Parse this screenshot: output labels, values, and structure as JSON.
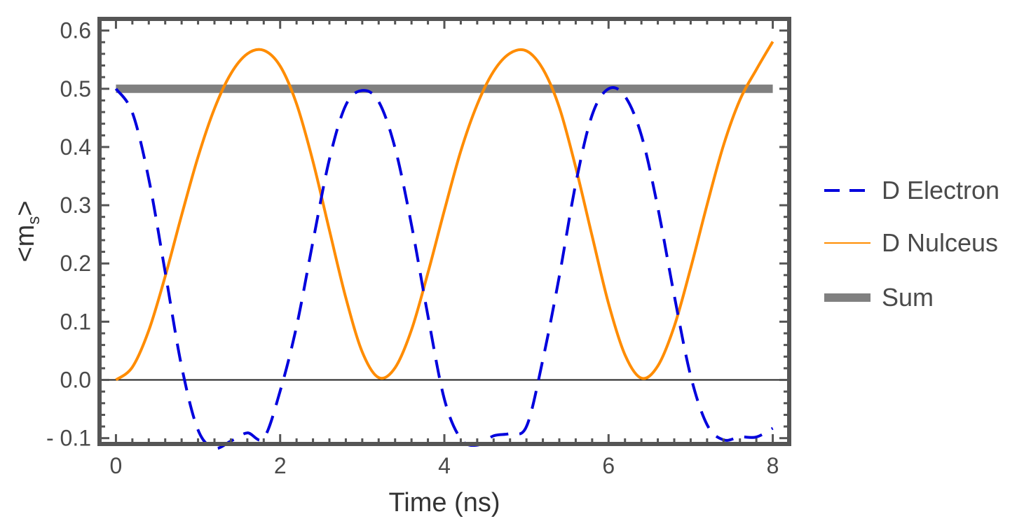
{
  "chart_data": {
    "type": "line",
    "xlabel": "Time (ns)",
    "ylabel": {
      "prefix": "<m",
      "sub": "s",
      "suffix": ">"
    },
    "xlim": [
      -0.2,
      8.2
    ],
    "ylim": [
      -0.11,
      0.62
    ],
    "x_ticks": [
      {
        "value": 0,
        "label": "0"
      },
      {
        "value": 2,
        "label": "2"
      },
      {
        "value": 4,
        "label": "4"
      },
      {
        "value": 6,
        "label": "6"
      },
      {
        "value": 8,
        "label": "8"
      }
    ],
    "y_ticks": [
      {
        "value": -0.1,
        "label": "- 0.1"
      },
      {
        "value": 0.0,
        "label": "0.0"
      },
      {
        "value": 0.1,
        "label": "0.1"
      },
      {
        "value": 0.2,
        "label": "0.2"
      },
      {
        "value": 0.3,
        "label": "0.3"
      },
      {
        "value": 0.4,
        "label": "0.4"
      },
      {
        "value": 0.5,
        "label": "0.5"
      },
      {
        "value": 0.6,
        "label": "0.6"
      }
    ],
    "grid": false,
    "legend_position": "right",
    "series": [
      {
        "name": "D Electron",
        "color": "#0000dd",
        "style": "dashed",
        "x": [
          0.0,
          0.2,
          0.4,
          0.6,
          0.8,
          1.0,
          1.2,
          1.4,
          1.6,
          1.8,
          2.0,
          2.2,
          2.4,
          2.6,
          2.8,
          3.0,
          3.2,
          3.4,
          3.6,
          3.8,
          4.0,
          4.2,
          4.4,
          4.6,
          4.8,
          5.0,
          5.2,
          5.4,
          5.6,
          5.8,
          6.0,
          6.2,
          6.4,
          6.6,
          6.8,
          7.0,
          7.2,
          7.4,
          7.6,
          7.8,
          8.0
        ],
        "y": [
          0.5,
          0.459,
          0.345,
          0.185,
          0.023,
          -0.086,
          -0.117,
          -0.105,
          -0.091,
          -0.1,
          -0.019,
          0.092,
          0.238,
          0.379,
          0.472,
          0.497,
          0.478,
          0.398,
          0.266,
          0.11,
          -0.033,
          -0.101,
          -0.112,
          -0.096,
          -0.092,
          -0.08,
          0.035,
          0.178,
          0.337,
          0.455,
          0.5,
          0.487,
          0.42,
          0.296,
          0.145,
          0.007,
          -0.077,
          -0.103,
          -0.098,
          -0.098,
          -0.083
        ]
      },
      {
        "name": "D Nulceus",
        "color": "#ff8c00",
        "style": "solid",
        "x": [
          0.0,
          0.2,
          0.4,
          0.6,
          0.8,
          1.0,
          1.2,
          1.4,
          1.6,
          1.8,
          2.0,
          2.2,
          2.4,
          2.6,
          2.8,
          3.0,
          3.2,
          3.4,
          3.6,
          3.8,
          4.0,
          4.2,
          4.4,
          4.6,
          4.8,
          5.0,
          5.2,
          5.4,
          5.6,
          5.8,
          6.0,
          6.2,
          6.4,
          6.6,
          6.8,
          7.0,
          7.2,
          7.4,
          7.6,
          7.8,
          8.0
        ],
        "y": [
          0.0,
          0.022,
          0.085,
          0.178,
          0.283,
          0.383,
          0.466,
          0.526,
          0.56,
          0.566,
          0.539,
          0.474,
          0.375,
          0.257,
          0.141,
          0.048,
          0.004,
          0.021,
          0.086,
          0.184,
          0.291,
          0.393,
          0.473,
          0.53,
          0.561,
          0.565,
          0.534,
          0.468,
          0.365,
          0.247,
          0.131,
          0.043,
          0.003,
          0.024,
          0.092,
          0.192,
          0.301,
          0.403,
          0.481,
          0.533,
          0.581
        ]
      },
      {
        "name": "Sum",
        "color": "#808080",
        "style": "thick",
        "x": [
          0.0,
          8.0
        ],
        "y": [
          0.5,
          0.5
        ]
      }
    ]
  }
}
